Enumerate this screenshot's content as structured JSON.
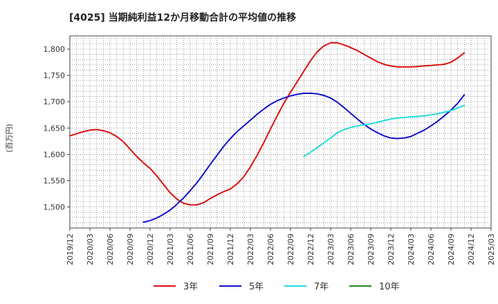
{
  "chart_data": {
    "type": "line",
    "title": "[4025]  当期純利益12か月移動合計の平均値の推移",
    "ylabel": "(百万円)",
    "ylim": [
      1460,
      1825
    ],
    "yticks": [
      1500,
      1550,
      1600,
      1650,
      1700,
      1750,
      1800
    ],
    "ytick_labels": [
      "1,500",
      "1,550",
      "1,600",
      "1,650",
      "1,700",
      "1,750",
      "1,800"
    ],
    "x_start": "2019-12",
    "x_end": "2025-03",
    "xtick_labels": [
      "2019/12",
      "2020/03",
      "2020/06",
      "2020/09",
      "2020/12",
      "2021/03",
      "2021/06",
      "2021/09",
      "2021/12",
      "2022/03",
      "2022/06",
      "2022/09",
      "2022/12",
      "2023/03",
      "2023/06",
      "2023/09",
      "2023/12",
      "2024/03",
      "2024/06",
      "2024/09",
      "2024/12",
      "2025/03"
    ],
    "grid": true,
    "legend_position": "bottom",
    "series": [
      {
        "name": "3年",
        "color": "#dd1111",
        "points": [
          [
            "2019-12",
            1635
          ],
          [
            "2020-02",
            1643
          ],
          [
            "2020-03",
            1646
          ],
          [
            "2020-04",
            1647
          ],
          [
            "2020-05",
            1645
          ],
          [
            "2020-06",
            1641
          ],
          [
            "2020-07",
            1634
          ],
          [
            "2020-08",
            1624
          ],
          [
            "2020-09",
            1610
          ],
          [
            "2020-10",
            1596
          ],
          [
            "2020-11",
            1584
          ],
          [
            "2020-12",
            1573
          ],
          [
            "2021-01",
            1559
          ],
          [
            "2021-02",
            1543
          ],
          [
            "2021-03",
            1527
          ],
          [
            "2021-04",
            1515
          ],
          [
            "2021-05",
            1507
          ],
          [
            "2021-06",
            1504
          ],
          [
            "2021-07",
            1504
          ],
          [
            "2021-08",
            1508
          ],
          [
            "2021-09",
            1516
          ],
          [
            "2021-10",
            1523
          ],
          [
            "2021-11",
            1529
          ],
          [
            "2021-12",
            1534
          ],
          [
            "2022-01",
            1544
          ],
          [
            "2022-02",
            1557
          ],
          [
            "2022-03",
            1576
          ],
          [
            "2022-04",
            1598
          ],
          [
            "2022-05",
            1622
          ],
          [
            "2022-06",
            1648
          ],
          [
            "2022-07",
            1673
          ],
          [
            "2022-08",
            1697
          ],
          [
            "2022-09",
            1718
          ],
          [
            "2022-10",
            1738
          ],
          [
            "2022-11",
            1758
          ],
          [
            "2022-12",
            1778
          ],
          [
            "2023-01",
            1795
          ],
          [
            "2023-02",
            1806
          ],
          [
            "2023-03",
            1812
          ],
          [
            "2023-04",
            1812
          ],
          [
            "2023-05",
            1808
          ],
          [
            "2023-06",
            1803
          ],
          [
            "2023-07",
            1797
          ],
          [
            "2023-08",
            1790
          ],
          [
            "2023-09",
            1783
          ],
          [
            "2023-10",
            1776
          ],
          [
            "2023-11",
            1771
          ],
          [
            "2023-12",
            1768
          ],
          [
            "2024-01",
            1766
          ],
          [
            "2024-02",
            1766
          ],
          [
            "2024-03",
            1766
          ],
          [
            "2024-04",
            1767
          ],
          [
            "2024-05",
            1768
          ],
          [
            "2024-06",
            1769
          ],
          [
            "2024-07",
            1770
          ],
          [
            "2024-08",
            1771
          ],
          [
            "2024-09",
            1775
          ],
          [
            "2024-10",
            1783
          ],
          [
            "2024-11",
            1793
          ]
        ]
      },
      {
        "name": "5年",
        "color": "#1111cc",
        "points": [
          [
            "2020-11",
            1471
          ],
          [
            "2020-12",
            1474
          ],
          [
            "2021-01",
            1479
          ],
          [
            "2021-02",
            1486
          ],
          [
            "2021-03",
            1494
          ],
          [
            "2021-04",
            1505
          ],
          [
            "2021-05",
            1517
          ],
          [
            "2021-06",
            1531
          ],
          [
            "2021-07",
            1546
          ],
          [
            "2021-08",
            1563
          ],
          [
            "2021-09",
            1581
          ],
          [
            "2021-10",
            1598
          ],
          [
            "2021-11",
            1615
          ],
          [
            "2021-12",
            1630
          ],
          [
            "2022-01",
            1643
          ],
          [
            "2022-02",
            1654
          ],
          [
            "2022-03",
            1665
          ],
          [
            "2022-04",
            1676
          ],
          [
            "2022-05",
            1686
          ],
          [
            "2022-06",
            1695
          ],
          [
            "2022-07",
            1702
          ],
          [
            "2022-08",
            1707
          ],
          [
            "2022-09",
            1711
          ],
          [
            "2022-10",
            1714
          ],
          [
            "2022-11",
            1716
          ],
          [
            "2022-12",
            1716
          ],
          [
            "2023-01",
            1715
          ],
          [
            "2023-02",
            1712
          ],
          [
            "2023-03",
            1707
          ],
          [
            "2023-04",
            1699
          ],
          [
            "2023-05",
            1689
          ],
          [
            "2023-06",
            1678
          ],
          [
            "2023-07",
            1667
          ],
          [
            "2023-08",
            1657
          ],
          [
            "2023-09",
            1648
          ],
          [
            "2023-10",
            1641
          ],
          [
            "2023-11",
            1635
          ],
          [
            "2023-12",
            1631
          ],
          [
            "2024-01",
            1630
          ],
          [
            "2024-02",
            1631
          ],
          [
            "2024-03",
            1634
          ],
          [
            "2024-04",
            1640
          ],
          [
            "2024-05",
            1646
          ],
          [
            "2024-06",
            1654
          ],
          [
            "2024-07",
            1663
          ],
          [
            "2024-08",
            1673
          ],
          [
            "2024-09",
            1684
          ],
          [
            "2024-10",
            1697
          ],
          [
            "2024-11",
            1713
          ]
        ]
      },
      {
        "name": "7年",
        "color": "#22dddd",
        "points": [
          [
            "2022-11",
            1596
          ],
          [
            "2022-12",
            1604
          ],
          [
            "2023-01",
            1613
          ],
          [
            "2023-02",
            1622
          ],
          [
            "2023-03",
            1631
          ],
          [
            "2023-04",
            1641
          ],
          [
            "2023-05",
            1647
          ],
          [
            "2023-06",
            1651
          ],
          [
            "2023-07",
            1654
          ],
          [
            "2023-08",
            1656
          ],
          [
            "2023-09",
            1658
          ],
          [
            "2023-10",
            1661
          ],
          [
            "2023-11",
            1664
          ],
          [
            "2023-12",
            1667
          ],
          [
            "2024-01",
            1669
          ],
          [
            "2024-02",
            1670
          ],
          [
            "2024-03",
            1671
          ],
          [
            "2024-04",
            1672
          ],
          [
            "2024-05",
            1673
          ],
          [
            "2024-06",
            1675
          ],
          [
            "2024-07",
            1677
          ],
          [
            "2024-08",
            1680
          ],
          [
            "2024-09",
            1683
          ],
          [
            "2024-10",
            1688
          ],
          [
            "2024-11",
            1693
          ]
        ]
      },
      {
        "name": "10年",
        "color": "#228822",
        "points": []
      }
    ]
  }
}
